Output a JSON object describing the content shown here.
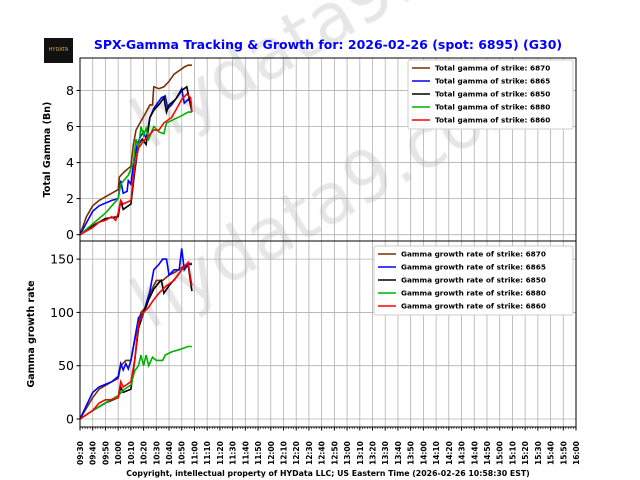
{
  "logo_text": "HYDATA",
  "watermark": "hydata9.com",
  "title": "SPX-Gamma Tracking & Growth for: 2026-02-26 (spot: 6895) (G30)",
  "footer": "Copyright, intellectual property of HYData LLC; US Eastern Time (2026-02-26 10:58:30 EST)",
  "colors": {
    "title": "#0000ff",
    "6870": "#7b2f00",
    "6865": "#0000ff",
    "6850": "#000000",
    "6880": "#00b000",
    "6860": "#ff0000"
  },
  "chart_data": [
    {
      "type": "line",
      "ylabel": "Total Gamma (Bn)",
      "ylim": [
        -0.35,
        9.8
      ],
      "yticks": [
        0,
        2,
        4,
        6,
        8
      ],
      "grid": true,
      "legend": "top-right",
      "series": [
        {
          "name": "Total gamma of strike: 6870",
          "key": "6870",
          "x": [
            "09:30",
            "09:35",
            "09:40",
            "09:45",
            "09:50",
            "09:55",
            "10:00",
            "10:01",
            "10:05",
            "10:10",
            "10:12",
            "10:14",
            "10:18",
            "10:22",
            "10:25",
            "10:27",
            "10:28",
            "10:32",
            "10:36",
            "10:40",
            "10:44",
            "10:48",
            "10:52",
            "10:55",
            "10:58"
          ],
          "y": [
            0,
            1.0,
            1.6,
            1.9,
            2.1,
            2.3,
            2.5,
            3.2,
            3.5,
            3.8,
            5.0,
            5.8,
            6.3,
            6.8,
            7.2,
            7.2,
            8.2,
            8.1,
            8.2,
            8.5,
            8.9,
            9.1,
            9.3,
            9.4,
            9.4
          ]
        },
        {
          "name": "Total gamma of strike: 6865",
          "key": "6865",
          "x": [
            "09:30",
            "09:40",
            "09:45",
            "09:55",
            "10:00",
            "10:02",
            "10:04",
            "10:07",
            "10:08",
            "10:10",
            "10:12",
            "10:15",
            "10:18",
            "10:20",
            "10:22",
            "10:25",
            "10:28",
            "10:31",
            "10:34",
            "10:37",
            "10:39",
            "10:42",
            "10:46",
            "10:50",
            "10:52",
            "10:55",
            "10:58"
          ],
          "y": [
            0,
            1.3,
            1.6,
            1.9,
            2.0,
            3.0,
            2.3,
            2.4,
            3.0,
            2.8,
            3.9,
            5.0,
            5.5,
            5.7,
            5.3,
            6.5,
            7.0,
            7.3,
            7.6,
            7.7,
            7.0,
            7.2,
            7.6,
            8.1,
            7.3,
            7.5,
            7.3
          ]
        },
        {
          "name": "Total gamma of strike: 6850",
          "key": "6850",
          "x": [
            "09:30",
            "09:40",
            "09:50",
            "10:00",
            "10:02",
            "10:04",
            "10:10",
            "10:13",
            "10:16",
            "10:19",
            "10:22",
            "10:25",
            "10:28",
            "10:33",
            "10:36",
            "10:38",
            "10:40",
            "10:45",
            "10:50",
            "10:54",
            "10:58"
          ],
          "y": [
            0,
            0.5,
            0.9,
            1.0,
            1.9,
            1.4,
            1.7,
            3.5,
            5.0,
            5.3,
            5.0,
            6.5,
            6.9,
            7.3,
            7.6,
            6.8,
            7.2,
            7.5,
            8.0,
            8.2,
            6.8
          ]
        },
        {
          "name": "Total gamma of strike: 6880",
          "key": "6880",
          "x": [
            "09:30",
            "09:40",
            "09:50",
            "09:55",
            "10:00",
            "10:02",
            "10:08",
            "10:12",
            "10:14",
            "10:16",
            "10:18",
            "10:20",
            "10:22",
            "10:24",
            "10:28",
            "10:32",
            "10:36",
            "10:38",
            "10:44",
            "10:50",
            "10:55",
            "10:58"
          ],
          "y": [
            0,
            0.6,
            1.2,
            1.6,
            2.0,
            2.8,
            3.3,
            4.0,
            5.3,
            4.8,
            6.0,
            5.5,
            5.9,
            5.3,
            6.0,
            5.7,
            5.6,
            6.2,
            6.4,
            6.6,
            6.8,
            6.8
          ]
        },
        {
          "name": "Total gamma of strike: 6860",
          "key": "6860",
          "x": [
            "09:30",
            "09:40",
            "09:45",
            "09:50",
            "09:55",
            "09:58",
            "10:00",
            "10:02",
            "10:04",
            "10:10",
            "10:13",
            "10:16",
            "10:20",
            "10:24",
            "10:28",
            "10:32",
            "10:36",
            "10:42",
            "10:46",
            "10:50",
            "10:54",
            "10:57",
            "10:58"
          ],
          "y": [
            0,
            0.4,
            0.7,
            0.8,
            1.0,
            0.8,
            1.2,
            1.9,
            1.7,
            1.9,
            3.8,
            4.8,
            5.2,
            5.5,
            5.8,
            5.8,
            6.2,
            6.5,
            7.0,
            7.5,
            7.8,
            7.6,
            6.8
          ]
        }
      ]
    },
    {
      "type": "line",
      "ylabel": "Gamma growth rate",
      "ylim": [
        -7.5,
        167
      ],
      "yticks": [
        0,
        50,
        100,
        150
      ],
      "grid": true,
      "legend": "top-right",
      "xticks": [
        "09:30",
        "09:40",
        "09:50",
        "10:00",
        "10:10",
        "10:20",
        "10:30",
        "10:40",
        "10:50",
        "11:00",
        "11:10",
        "11:20",
        "11:30",
        "11:40",
        "11:50",
        "12:00",
        "12:10",
        "12:20",
        "12:30",
        "12:40",
        "12:50",
        "13:00",
        "13:10",
        "13:20",
        "13:30",
        "13:40",
        "13:50",
        "14:00",
        "14:10",
        "14:20",
        "14:30",
        "14:40",
        "14:50",
        "15:00",
        "15:10",
        "15:20",
        "15:30",
        "15:40",
        "15:50",
        "16:00"
      ],
      "series": [
        {
          "name": "Gamma growth rate of strike: 6870",
          "key": "6870",
          "x": [
            "09:30",
            "09:40",
            "09:45",
            "09:55",
            "10:00",
            "10:02",
            "10:06",
            "10:10",
            "10:14",
            "10:18",
            "10:22",
            "10:26",
            "10:30",
            "10:35",
            "10:40",
            "10:45",
            "10:50",
            "10:55",
            "10:58"
          ],
          "y": [
            0,
            20,
            28,
            35,
            38,
            50,
            55,
            55,
            80,
            100,
            105,
            120,
            130,
            130,
            135,
            138,
            142,
            146,
            146
          ]
        },
        {
          "name": "Gamma growth rate of strike: 6865",
          "key": "6865",
          "x": [
            "09:30",
            "09:36",
            "09:40",
            "09:45",
            "09:55",
            "10:00",
            "10:02",
            "10:04",
            "10:06",
            "10:08",
            "10:10",
            "10:13",
            "10:16",
            "10:20",
            "10:25",
            "10:28",
            "10:32",
            "10:35",
            "10:38",
            "10:40",
            "10:44",
            "10:48",
            "10:50",
            "10:52",
            "10:55",
            "10:58"
          ],
          "y": [
            0,
            15,
            25,
            30,
            35,
            40,
            52,
            46,
            52,
            47,
            55,
            75,
            95,
            100,
            120,
            140,
            145,
            150,
            150,
            135,
            140,
            140,
            160,
            140,
            145,
            145
          ]
        },
        {
          "name": "Gamma growth rate of strike: 6850",
          "key": "6850",
          "x": [
            "09:30",
            "09:40",
            "09:50",
            "10:00",
            "10:02",
            "10:04",
            "10:10",
            "10:13",
            "10:16",
            "10:20",
            "10:24",
            "10:28",
            "10:32",
            "10:34",
            "10:36",
            "10:40",
            "10:45",
            "10:50",
            "10:55",
            "10:58"
          ],
          "y": [
            0,
            8,
            15,
            20,
            30,
            25,
            28,
            55,
            85,
            100,
            112,
            122,
            128,
            130,
            118,
            125,
            132,
            140,
            145,
            120
          ]
        },
        {
          "name": "Gamma growth rate of strike: 6880",
          "key": "6880",
          "x": [
            "09:30",
            "09:40",
            "09:50",
            "10:00",
            "10:05",
            "10:10",
            "10:13",
            "10:16",
            "10:18",
            "10:20",
            "10:22",
            "10:24",
            "10:27",
            "10:30",
            "10:35",
            "10:37",
            "10:42",
            "10:48",
            "10:55",
            "10:58"
          ],
          "y": [
            0,
            8,
            15,
            22,
            28,
            32,
            45,
            50,
            60,
            50,
            60,
            50,
            58,
            55,
            55,
            60,
            63,
            65,
            68,
            68
          ]
        },
        {
          "name": "Gamma growth rate of strike: 6860",
          "key": "6860",
          "x": [
            "09:30",
            "09:40",
            "09:45",
            "09:50",
            "09:55",
            "10:00",
            "10:02",
            "10:04",
            "10:10",
            "10:13",
            "10:16",
            "10:20",
            "10:24",
            "10:28",
            "10:32",
            "10:38",
            "10:44",
            "10:50",
            "10:55",
            "10:58"
          ],
          "y": [
            0,
            8,
            15,
            18,
            18,
            20,
            35,
            30,
            35,
            55,
            90,
            100,
            105,
            112,
            118,
            125,
            130,
            140,
            147,
            125
          ]
        }
      ]
    }
  ]
}
